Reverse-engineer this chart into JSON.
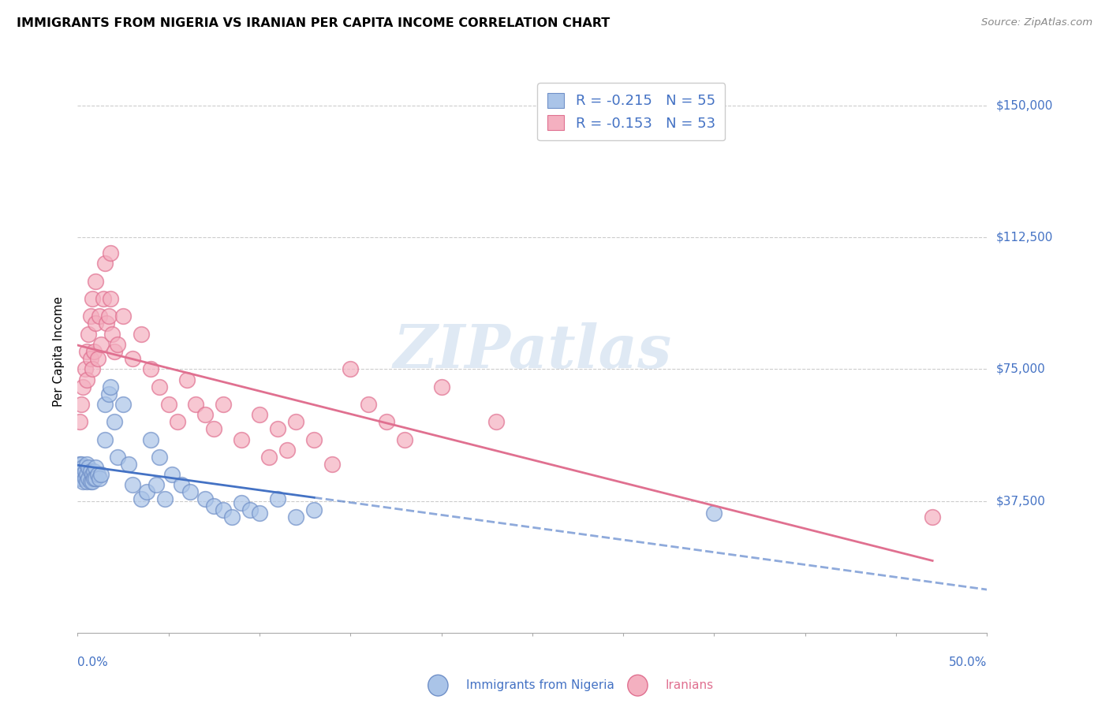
{
  "title": "IMMIGRANTS FROM NIGERIA VS IRANIAN PER CAPITA INCOME CORRELATION CHART",
  "source": "Source: ZipAtlas.com",
  "ylabel": "Per Capita Income",
  "ytick_labels": [
    "$37,500",
    "$75,000",
    "$112,500",
    "$150,000"
  ],
  "ytick_values": [
    37500,
    75000,
    112500,
    150000
  ],
  "ymin": 0,
  "ymax": 160000,
  "xmin": 0.0,
  "xmax": 0.5,
  "legend_r1": "R = -0.215   N = 55",
  "legend_r2": "R = -0.153   N = 53",
  "color_nigeria_fill": "#aac4e8",
  "color_iran_fill": "#f4b0c0",
  "color_nigeria_edge": "#7090c8",
  "color_iran_edge": "#e07090",
  "color_trendline_nigeria": "#4472c4",
  "color_trendline_iran": "#e07090",
  "color_axis_labels": "#4472c4",
  "watermark": "ZIPatlas",
  "nigeria_x": [
    0.001,
    0.001,
    0.001,
    0.002,
    0.002,
    0.003,
    0.003,
    0.003,
    0.004,
    0.004,
    0.005,
    0.005,
    0.005,
    0.006,
    0.006,
    0.007,
    0.007,
    0.008,
    0.008,
    0.009,
    0.009,
    0.01,
    0.01,
    0.011,
    0.012,
    0.013,
    0.015,
    0.015,
    0.017,
    0.018,
    0.02,
    0.022,
    0.025,
    0.028,
    0.03,
    0.035,
    0.038,
    0.04,
    0.043,
    0.045,
    0.048,
    0.052,
    0.057,
    0.062,
    0.07,
    0.075,
    0.08,
    0.085,
    0.09,
    0.095,
    0.1,
    0.11,
    0.12,
    0.13,
    0.35
  ],
  "nigeria_y": [
    48000,
    46000,
    44000,
    48000,
    44000,
    47000,
    45000,
    43000,
    46000,
    44000,
    48000,
    45000,
    43000,
    47000,
    44000,
    46000,
    43000,
    45000,
    43000,
    46000,
    44000,
    47000,
    44000,
    45000,
    44000,
    45000,
    65000,
    55000,
    68000,
    70000,
    60000,
    50000,
    65000,
    48000,
    42000,
    38000,
    40000,
    55000,
    42000,
    50000,
    38000,
    45000,
    42000,
    40000,
    38000,
    36000,
    35000,
    33000,
    37000,
    35000,
    34000,
    38000,
    33000,
    35000,
    34000
  ],
  "iran_x": [
    0.001,
    0.002,
    0.003,
    0.004,
    0.005,
    0.005,
    0.006,
    0.007,
    0.007,
    0.008,
    0.008,
    0.009,
    0.01,
    0.01,
    0.011,
    0.012,
    0.013,
    0.014,
    0.015,
    0.016,
    0.017,
    0.018,
    0.018,
    0.019,
    0.02,
    0.022,
    0.025,
    0.03,
    0.035,
    0.04,
    0.045,
    0.05,
    0.055,
    0.06,
    0.065,
    0.07,
    0.075,
    0.08,
    0.09,
    0.1,
    0.105,
    0.11,
    0.115,
    0.12,
    0.13,
    0.14,
    0.15,
    0.16,
    0.17,
    0.18,
    0.2,
    0.23,
    0.47
  ],
  "iran_y": [
    60000,
    65000,
    70000,
    75000,
    80000,
    72000,
    85000,
    78000,
    90000,
    75000,
    95000,
    80000,
    88000,
    100000,
    78000,
    90000,
    82000,
    95000,
    105000,
    88000,
    90000,
    95000,
    108000,
    85000,
    80000,
    82000,
    90000,
    78000,
    85000,
    75000,
    70000,
    65000,
    60000,
    72000,
    65000,
    62000,
    58000,
    65000,
    55000,
    62000,
    50000,
    58000,
    52000,
    60000,
    55000,
    48000,
    75000,
    65000,
    60000,
    55000,
    70000,
    60000,
    33000
  ]
}
